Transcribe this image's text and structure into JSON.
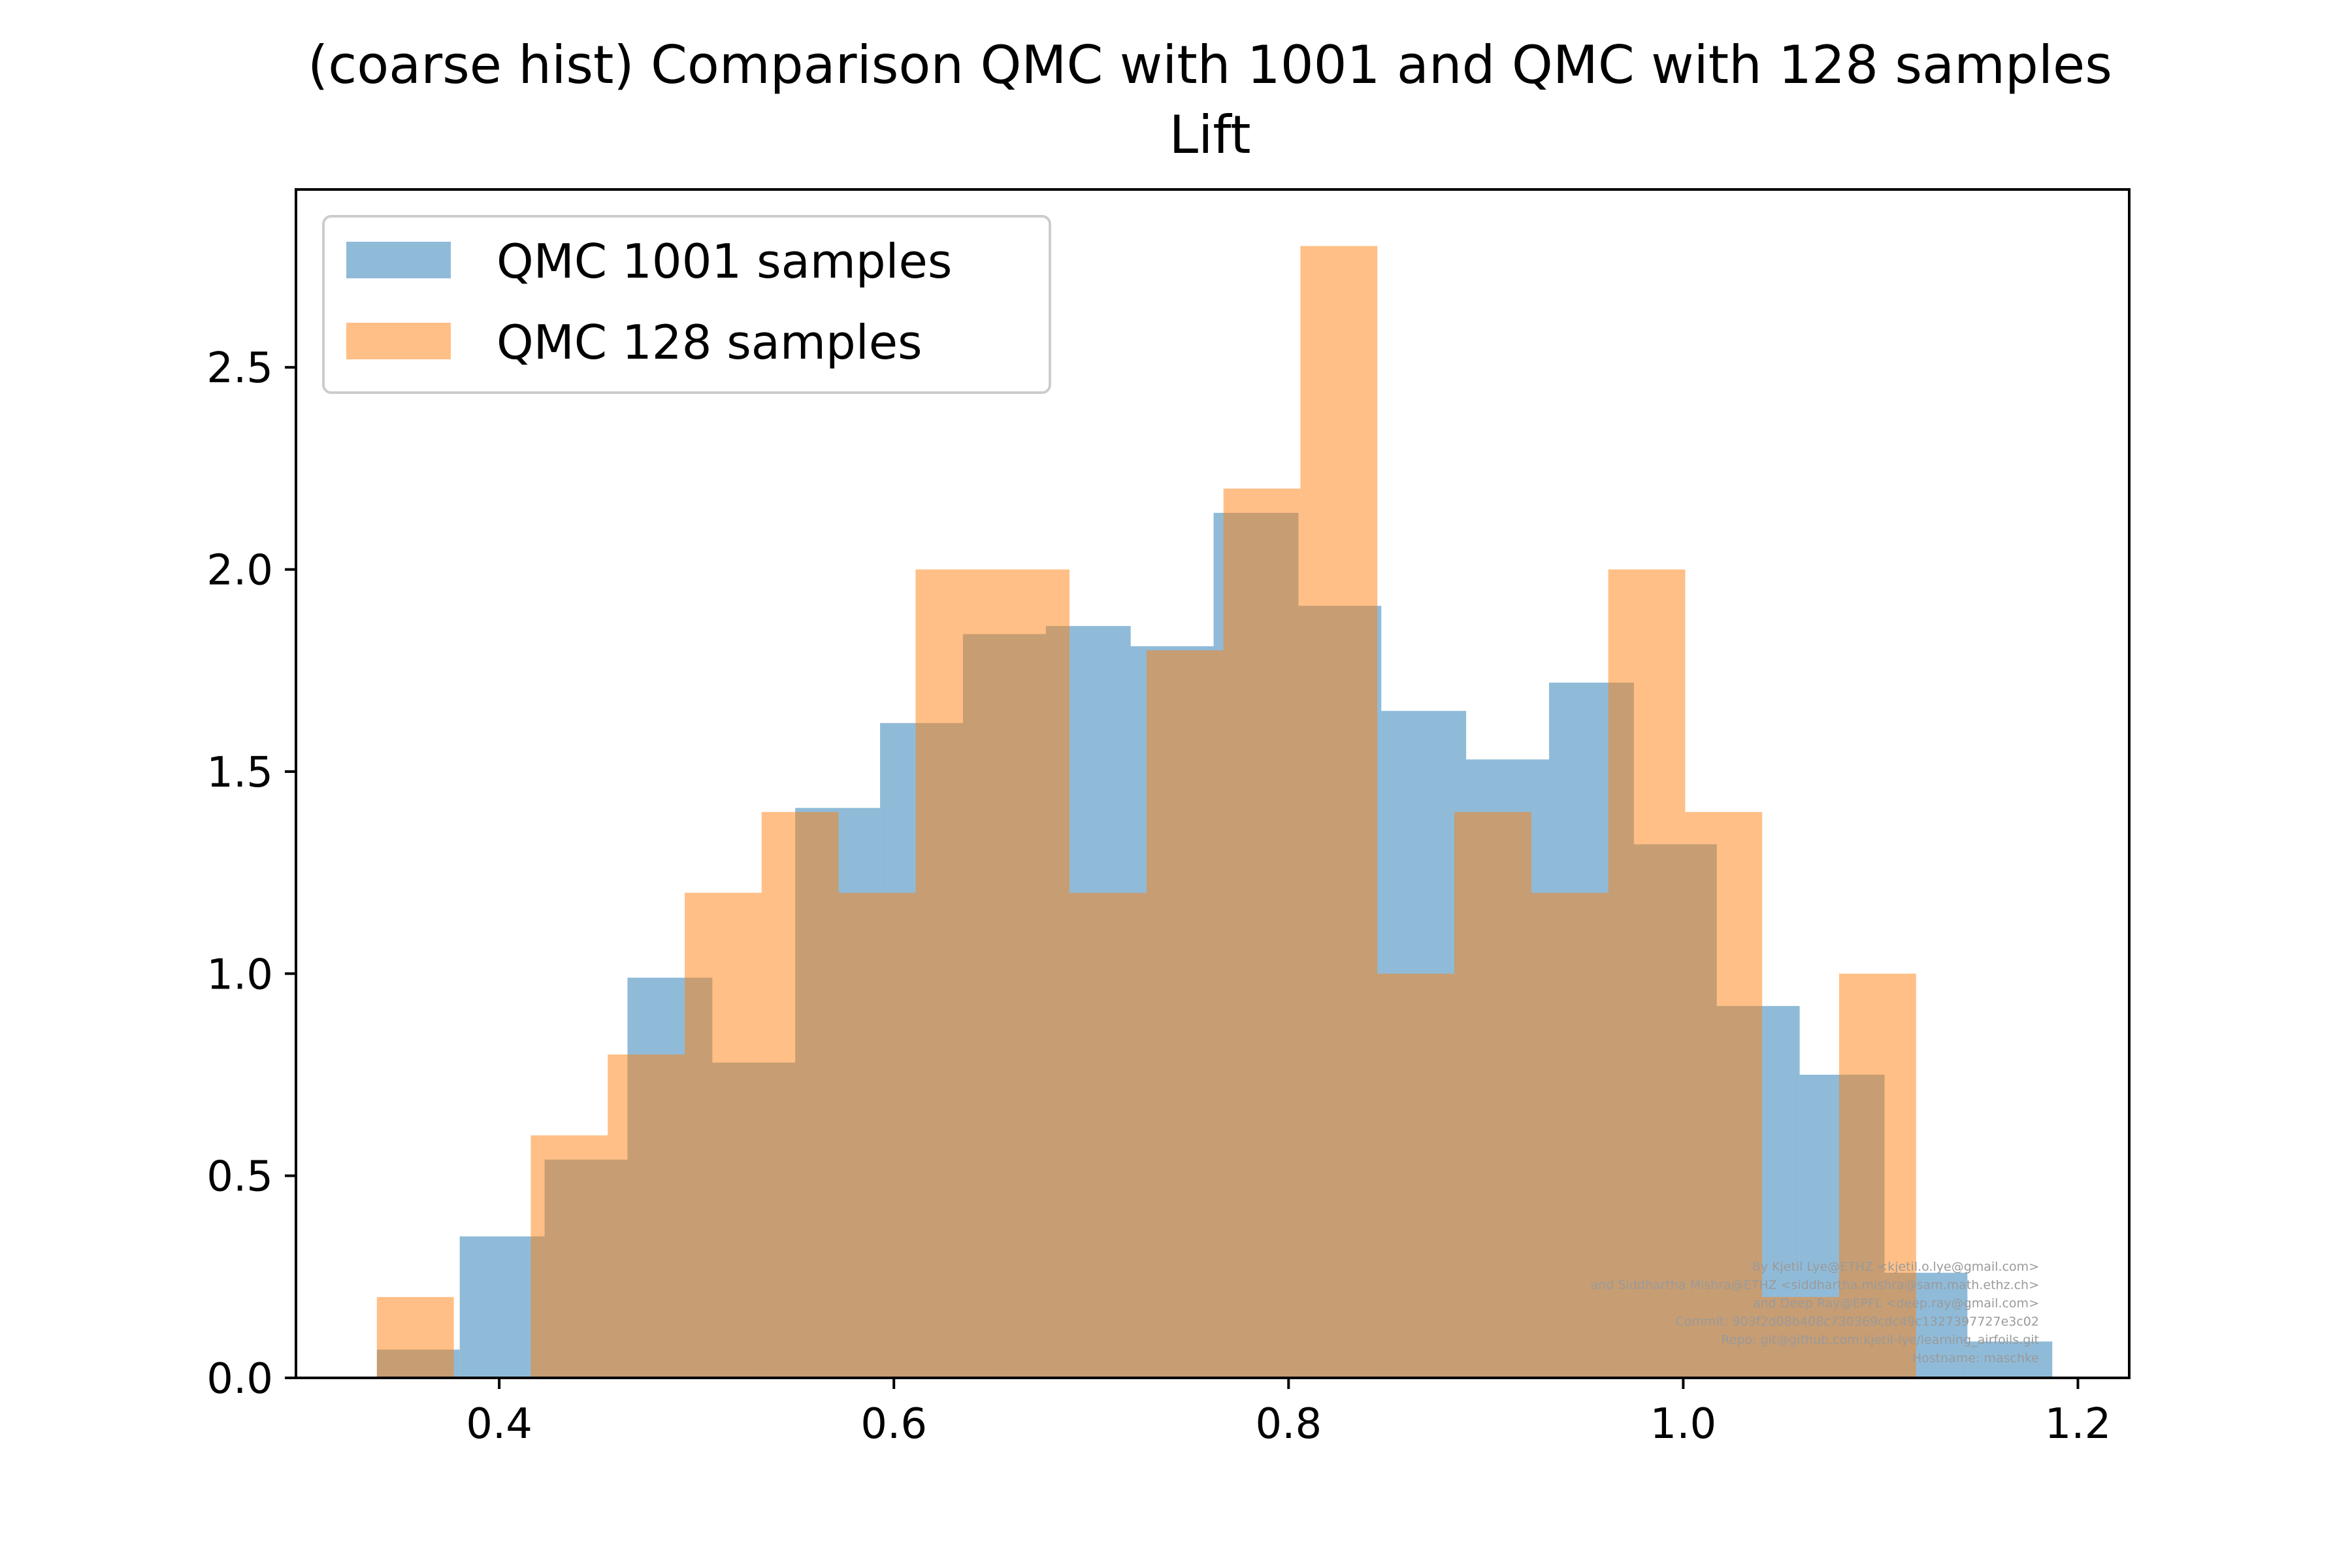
{
  "chart_data": {
    "type": "bar",
    "title": "(coarse hist) Comparison QMC with 1001 and QMC with 128 samples",
    "subtitle": "Lift",
    "xlabel": "",
    "ylabel": "",
    "xlim": [
      0.297,
      1.226
    ],
    "ylim": [
      0.0,
      2.94
    ],
    "x_ticks": [
      0.4,
      0.6,
      0.8,
      1.0,
      1.2
    ],
    "x_tick_labels": [
      "0.4",
      "0.6",
      "0.8",
      "1.0",
      "1.2"
    ],
    "y_ticks": [
      0.0,
      0.5,
      1.0,
      1.5,
      2.0,
      2.5
    ],
    "y_tick_labels": [
      "0.0",
      "0.5",
      "1.0",
      "1.5",
      "2.0",
      "2.5"
    ],
    "grid": false,
    "legend_position": "top-left",
    "series": [
      {
        "name": "QMC 1001 samples",
        "color": "#1f77b4",
        "opacity": 0.5,
        "bins": [
          {
            "x0": 0.338,
            "x1": 0.38,
            "value": 0.07
          },
          {
            "x0": 0.38,
            "x1": 0.423,
            "value": 0.35
          },
          {
            "x0": 0.423,
            "x1": 0.465,
            "value": 0.54
          },
          {
            "x0": 0.465,
            "x1": 0.508,
            "value": 0.99
          },
          {
            "x0": 0.508,
            "x1": 0.55,
            "value": 0.78
          },
          {
            "x0": 0.55,
            "x1": 0.593,
            "value": 1.41
          },
          {
            "x0": 0.593,
            "x1": 0.635,
            "value": 1.62
          },
          {
            "x0": 0.635,
            "x1": 0.677,
            "value": 1.84
          },
          {
            "x0": 0.677,
            "x1": 0.72,
            "value": 1.86
          },
          {
            "x0": 0.72,
            "x1": 0.762,
            "value": 1.81
          },
          {
            "x0": 0.762,
            "x1": 0.805,
            "value": 2.14
          },
          {
            "x0": 0.805,
            "x1": 0.847,
            "value": 1.91
          },
          {
            "x0": 0.847,
            "x1": 0.89,
            "value": 1.65
          },
          {
            "x0": 0.89,
            "x1": 0.932,
            "value": 1.53
          },
          {
            "x0": 0.932,
            "x1": 0.975,
            "value": 1.72
          },
          {
            "x0": 0.975,
            "x1": 1.017,
            "value": 1.32
          },
          {
            "x0": 1.017,
            "x1": 1.059,
            "value": 0.92
          },
          {
            "x0": 1.059,
            "x1": 1.102,
            "value": 0.75
          },
          {
            "x0": 1.102,
            "x1": 1.144,
            "value": 0.26
          },
          {
            "x0": 1.144,
            "x1": 1.187,
            "value": 0.09
          }
        ]
      },
      {
        "name": "QMC 128 samples",
        "color": "#ff7f0e",
        "opacity": 0.5,
        "bins": [
          {
            "x0": 0.338,
            "x1": 0.377,
            "value": 0.2
          },
          {
            "x0": 0.377,
            "x1": 0.416,
            "value": 0.0
          },
          {
            "x0": 0.416,
            "x1": 0.455,
            "value": 0.6
          },
          {
            "x0": 0.455,
            "x1": 0.494,
            "value": 0.8
          },
          {
            "x0": 0.494,
            "x1": 0.533,
            "value": 1.2
          },
          {
            "x0": 0.533,
            "x1": 0.572,
            "value": 1.4
          },
          {
            "x0": 0.572,
            "x1": 0.611,
            "value": 1.2
          },
          {
            "x0": 0.611,
            "x1": 0.65,
            "value": 2.0
          },
          {
            "x0": 0.65,
            "x1": 0.689,
            "value": 2.0
          },
          {
            "x0": 0.689,
            "x1": 0.728,
            "value": 1.2
          },
          {
            "x0": 0.728,
            "x1": 0.767,
            "value": 1.8
          },
          {
            "x0": 0.767,
            "x1": 0.806,
            "value": 2.2
          },
          {
            "x0": 0.806,
            "x1": 0.845,
            "value": 2.8
          },
          {
            "x0": 0.845,
            "x1": 0.884,
            "value": 1.0
          },
          {
            "x0": 0.884,
            "x1": 0.923,
            "value": 1.4
          },
          {
            "x0": 0.923,
            "x1": 0.962,
            "value": 1.2
          },
          {
            "x0": 0.962,
            "x1": 1.001,
            "value": 2.0
          },
          {
            "x0": 1.001,
            "x1": 1.04,
            "value": 1.4
          },
          {
            "x0": 1.04,
            "x1": 1.079,
            "value": 0.2
          },
          {
            "x0": 1.079,
            "x1": 1.118,
            "value": 1.0
          }
        ]
      }
    ],
    "credit_lines": [
      "By Kjetil Lye@ETHZ <kjetil.o.lye@gmail.com>",
      "and Siddhartha Mishra@ETHZ <siddhartha.mishra@sam.math.ethz.ch>",
      "and Deep Ray@EPFL <deep.ray@gmail.com>",
      "Commit: 903f2d08b408c730369cdc49c1327397727e3c02",
      "Repo: git@github.com:kjetil-lye/learning_airfoils.git",
      "Hostname: maschke"
    ]
  }
}
